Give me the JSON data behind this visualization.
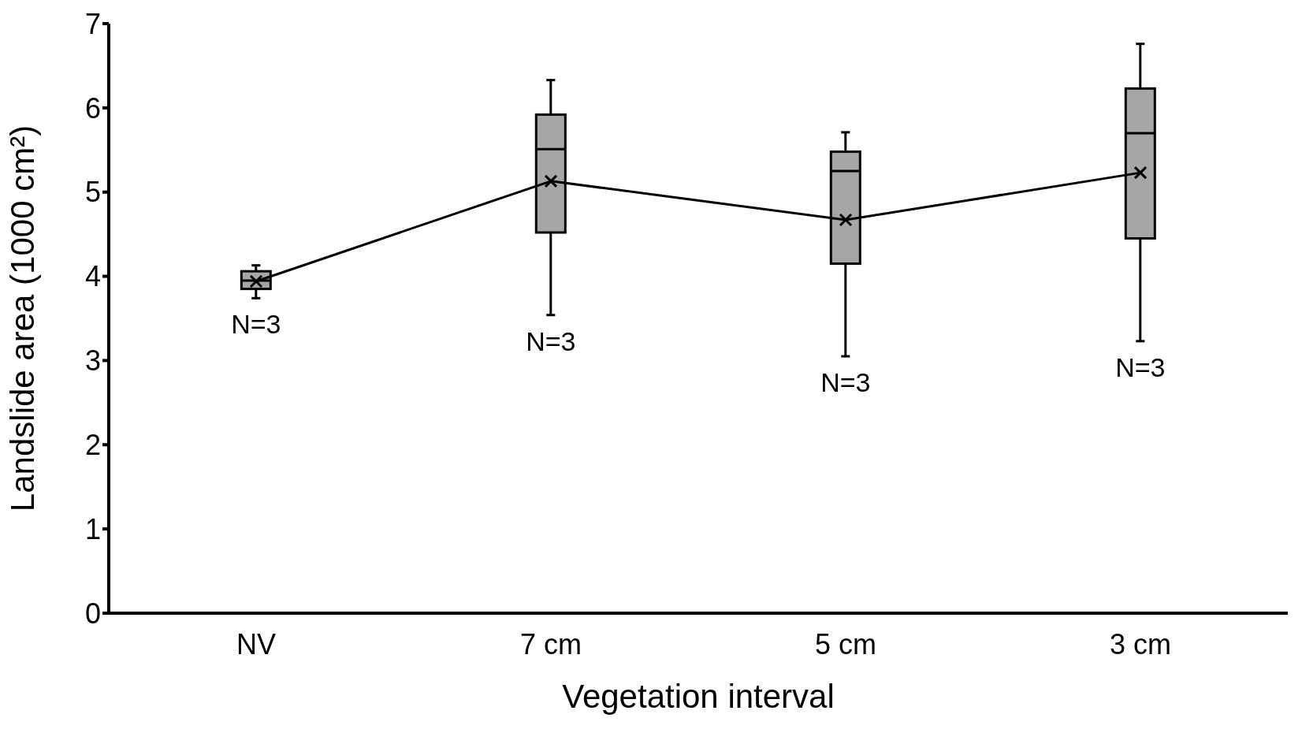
{
  "chart_data": {
    "type": "box",
    "xlabel": "Vegetation interval",
    "ylabel": "Landslide area (1000 cm²)",
    "categories": [
      "NV",
      "7 cm",
      "5 cm",
      "3 cm"
    ],
    "ylim": [
      0,
      7
    ],
    "yticks": [
      0,
      1,
      2,
      3,
      4,
      5,
      6,
      7
    ],
    "grid": false,
    "boxes": [
      {
        "low": 3.74,
        "q1": 3.85,
        "median": 3.95,
        "q3": 4.06,
        "high": 4.13
      },
      {
        "low": 3.54,
        "q1": 4.52,
        "median": 5.51,
        "q3": 5.92,
        "high": 6.33
      },
      {
        "low": 3.05,
        "q1": 4.15,
        "median": 5.25,
        "q3": 5.48,
        "high": 5.71
      },
      {
        "low": 3.23,
        "q1": 4.45,
        "median": 5.7,
        "q3": 6.23,
        "high": 6.76
      }
    ],
    "series": [
      {
        "type": "line",
        "color": "#000000",
        "marker": "cross",
        "values": [
          3.94,
          5.13,
          4.67,
          5.23
        ]
      }
    ],
    "annotations": [
      "N=3",
      "N=3",
      "N=3",
      "N=3"
    ]
  }
}
